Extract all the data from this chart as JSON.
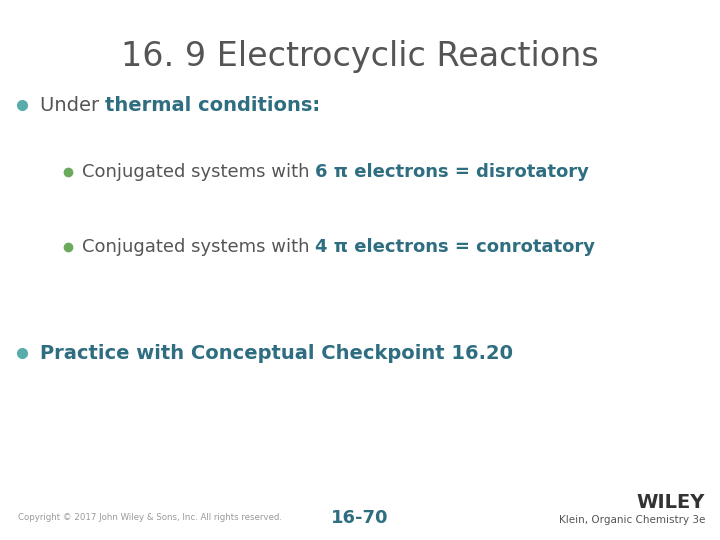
{
  "title": "16. 9 Electrocyclic Reactions",
  "title_color": "#555555",
  "title_fontsize": 24,
  "background_color": "#ffffff",
  "bullet_color_teal": "#5aacac",
  "bullet_color_green": "#6aaa5a",
  "text_color_normal": "#555555",
  "text_color_bold_teal": "#2e6e80",
  "bullet1_plain": "Under ",
  "bullet1_bold": "thermal conditions:",
  "sub_bullet1_plain": "Conjugated systems with ",
  "sub_bullet1_bold": "6 π electrons = disrotatory",
  "sub_bullet2_plain": "Conjugated systems with ",
  "sub_bullet2_bold": "4 π electrons = conrotatory",
  "bullet3": "Practice with Conceptual Checkpoint 16.20",
  "footer_left": "Copyright © 2017 John Wiley & Sons, Inc. All rights reserved.",
  "footer_center": "16-70",
  "footer_right1": "WILEY",
  "footer_right2": "Klein, Organic Chemistry 3e",
  "figwidth": 7.2,
  "figheight": 5.4,
  "dpi": 100
}
